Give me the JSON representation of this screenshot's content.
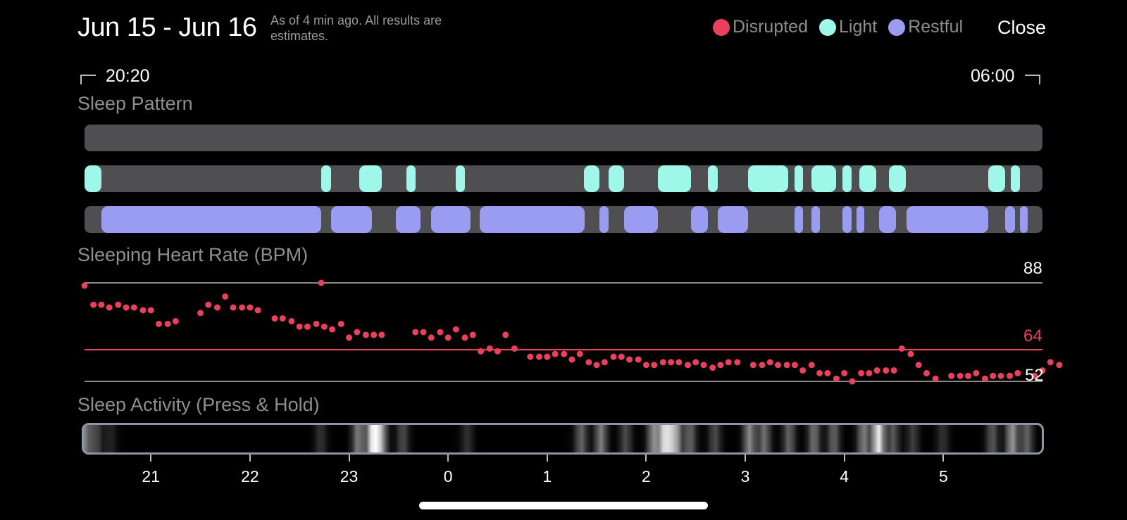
{
  "header": {
    "date_range": "Jun 15 - Jun 16",
    "subtitle": "As of 4 min ago. All results are estimates.",
    "close_label": "Close",
    "legend": [
      {
        "label": "Disrupted",
        "color": "#e9405e"
      },
      {
        "label": "Light",
        "color": "#9ff7e9"
      },
      {
        "label": "Restful",
        "color": "#9a9cf2"
      }
    ]
  },
  "range": {
    "start": "20:20",
    "end": "06:00"
  },
  "sleep_pattern": {
    "label": "Sleep Pattern",
    "light_segments": [
      [
        20.33,
        20.5
      ],
      [
        22.72,
        22.82
      ],
      [
        23.1,
        23.33
      ],
      [
        23.58,
        23.67
      ],
      [
        24.08,
        24.17
      ],
      [
        25.37,
        25.53
      ],
      [
        25.62,
        25.78
      ],
      [
        26.12,
        26.45
      ],
      [
        26.62,
        26.72
      ],
      [
        27.03,
        27.43
      ],
      [
        27.5,
        27.58
      ],
      [
        27.67,
        27.92
      ],
      [
        27.98,
        28.07
      ],
      [
        28.15,
        28.32
      ],
      [
        28.45,
        28.62
      ],
      [
        29.45,
        29.62
      ],
      [
        29.68,
        29.77
      ]
    ],
    "restful_segments": [
      [
        20.5,
        22.72
      ],
      [
        22.82,
        23.23
      ],
      [
        23.47,
        23.72
      ],
      [
        23.83,
        24.23
      ],
      [
        24.32,
        25.38
      ],
      [
        25.53,
        25.62
      ],
      [
        25.78,
        26.12
      ],
      [
        26.45,
        26.62
      ],
      [
        26.72,
        27.03
      ],
      [
        27.5,
        27.58
      ],
      [
        27.67,
        27.75
      ],
      [
        27.98,
        28.07
      ],
      [
        28.12,
        28.2
      ],
      [
        28.35,
        28.52
      ],
      [
        28.63,
        29.45
      ],
      [
        29.62,
        29.72
      ],
      [
        29.77,
        29.85
      ]
    ]
  },
  "heart_rate": {
    "label": "Sleeping Heart Rate (BPM)",
    "max_label": "88",
    "avg_label": "64",
    "min_label": "52",
    "color": "#e9405e",
    "points": [
      [
        20.33,
        87
      ],
      [
        20.42,
        80
      ],
      [
        20.5,
        80
      ],
      [
        20.58,
        79
      ],
      [
        20.67,
        80
      ],
      [
        20.75,
        79
      ],
      [
        20.83,
        79
      ],
      [
        20.92,
        78
      ],
      [
        21.0,
        78
      ],
      [
        21.08,
        73
      ],
      [
        21.17,
        73
      ],
      [
        21.25,
        74
      ],
      [
        21.5,
        77
      ],
      [
        21.58,
        80
      ],
      [
        21.67,
        79
      ],
      [
        21.75,
        83
      ],
      [
        21.83,
        79
      ],
      [
        21.92,
        79
      ],
      [
        22.0,
        79
      ],
      [
        22.08,
        78
      ],
      [
        22.25,
        75
      ],
      [
        22.33,
        75
      ],
      [
        22.42,
        74
      ],
      [
        22.5,
        72
      ],
      [
        22.58,
        72
      ],
      [
        22.67,
        73
      ],
      [
        22.75,
        72
      ],
      [
        22.83,
        71
      ],
      [
        22.92,
        73
      ],
      [
        23.0,
        68
      ],
      [
        23.08,
        70
      ],
      [
        23.17,
        69
      ],
      [
        23.25,
        69
      ],
      [
        23.33,
        69
      ],
      [
        23.67,
        70
      ],
      [
        23.75,
        70
      ],
      [
        23.83,
        68
      ],
      [
        23.92,
        70
      ],
      [
        24.0,
        68
      ],
      [
        24.08,
        71
      ],
      [
        24.17,
        68
      ],
      [
        24.25,
        69
      ],
      [
        24.33,
        63
      ],
      [
        24.42,
        64
      ],
      [
        24.5,
        63
      ],
      [
        24.58,
        69
      ],
      [
        24.67,
        64
      ],
      [
        24.83,
        61
      ],
      [
        24.92,
        61
      ],
      [
        25.0,
        61
      ],
      [
        25.08,
        62
      ],
      [
        25.17,
        62
      ],
      [
        25.25,
        60
      ],
      [
        25.33,
        62
      ],
      [
        25.42,
        59
      ],
      [
        25.5,
        58
      ],
      [
        25.58,
        59
      ],
      [
        25.67,
        61
      ],
      [
        25.75,
        61
      ],
      [
        25.83,
        60
      ],
      [
        25.92,
        60
      ],
      [
        26.0,
        58
      ],
      [
        26.08,
        58
      ],
      [
        26.17,
        59
      ],
      [
        26.25,
        59
      ],
      [
        26.33,
        59
      ],
      [
        26.42,
        58
      ],
      [
        26.5,
        59
      ],
      [
        26.58,
        58
      ],
      [
        26.67,
        57
      ],
      [
        26.75,
        58
      ],
      [
        26.83,
        59
      ],
      [
        26.92,
        59
      ],
      [
        27.08,
        58
      ],
      [
        27.17,
        58
      ],
      [
        27.25,
        59
      ],
      [
        27.33,
        58
      ],
      [
        27.42,
        58
      ],
      [
        27.5,
        58
      ],
      [
        27.58,
        56
      ],
      [
        27.67,
        58
      ],
      [
        27.75,
        55
      ],
      [
        27.83,
        55
      ],
      [
        27.92,
        53
      ],
      [
        28.0,
        55
      ],
      [
        28.08,
        52
      ],
      [
        28.17,
        55
      ],
      [
        28.25,
        55
      ],
      [
        28.33,
        56
      ],
      [
        28.42,
        56
      ],
      [
        28.5,
        56
      ],
      [
        28.58,
        64
      ],
      [
        28.67,
        62
      ],
      [
        28.75,
        58
      ],
      [
        28.83,
        55
      ],
      [
        28.92,
        53
      ],
      [
        29.08,
        54
      ],
      [
        29.17,
        54
      ],
      [
        29.25,
        54
      ],
      [
        29.33,
        55
      ],
      [
        29.42,
        53
      ],
      [
        29.5,
        54
      ],
      [
        29.58,
        54
      ],
      [
        29.67,
        54
      ],
      [
        29.75,
        55
      ],
      [
        29.92,
        54
      ],
      [
        30.0,
        56
      ],
      [
        30.08,
        59
      ],
      [
        30.17,
        58
      ],
      [
        22.72,
        88
      ]
    ]
  },
  "sleep_activity": {
    "label": "Sleep Activity (Press & Hold)",
    "intensity_peaks": [
      [
        20.33,
        0.55
      ],
      [
        20.45,
        0.3
      ],
      [
        20.6,
        0.15
      ],
      [
        22.72,
        0.2
      ],
      [
        23.1,
        0.5
      ],
      [
        23.25,
        0.95
      ],
      [
        23.33,
        0.6
      ],
      [
        23.55,
        0.3
      ],
      [
        24.2,
        0.2
      ],
      [
        25.35,
        0.4
      ],
      [
        25.55,
        0.5
      ],
      [
        25.8,
        0.3
      ],
      [
        26.08,
        0.55
      ],
      [
        26.2,
        0.9
      ],
      [
        26.3,
        0.7
      ],
      [
        26.45,
        0.4
      ],
      [
        26.7,
        0.3
      ],
      [
        27.05,
        0.55
      ],
      [
        27.2,
        0.45
      ],
      [
        27.45,
        0.4
      ],
      [
        27.7,
        0.45
      ],
      [
        27.9,
        0.4
      ],
      [
        28.2,
        0.5
      ],
      [
        28.35,
        0.95
      ],
      [
        28.5,
        0.35
      ],
      [
        28.7,
        0.25
      ],
      [
        29.0,
        0.2
      ],
      [
        29.5,
        0.35
      ],
      [
        29.7,
        0.6
      ],
      [
        29.85,
        0.4
      ]
    ],
    "ticks": [
      {
        "label": "21",
        "x": 21
      },
      {
        "label": "22",
        "x": 22
      },
      {
        "label": "23",
        "x": 23
      },
      {
        "label": "0",
        "x": 24
      },
      {
        "label": "1",
        "x": 25
      },
      {
        "label": "2",
        "x": 26
      },
      {
        "label": "3",
        "x": 27
      },
      {
        "label": "4",
        "x": 28
      },
      {
        "label": "5",
        "x": 29
      }
    ]
  }
}
